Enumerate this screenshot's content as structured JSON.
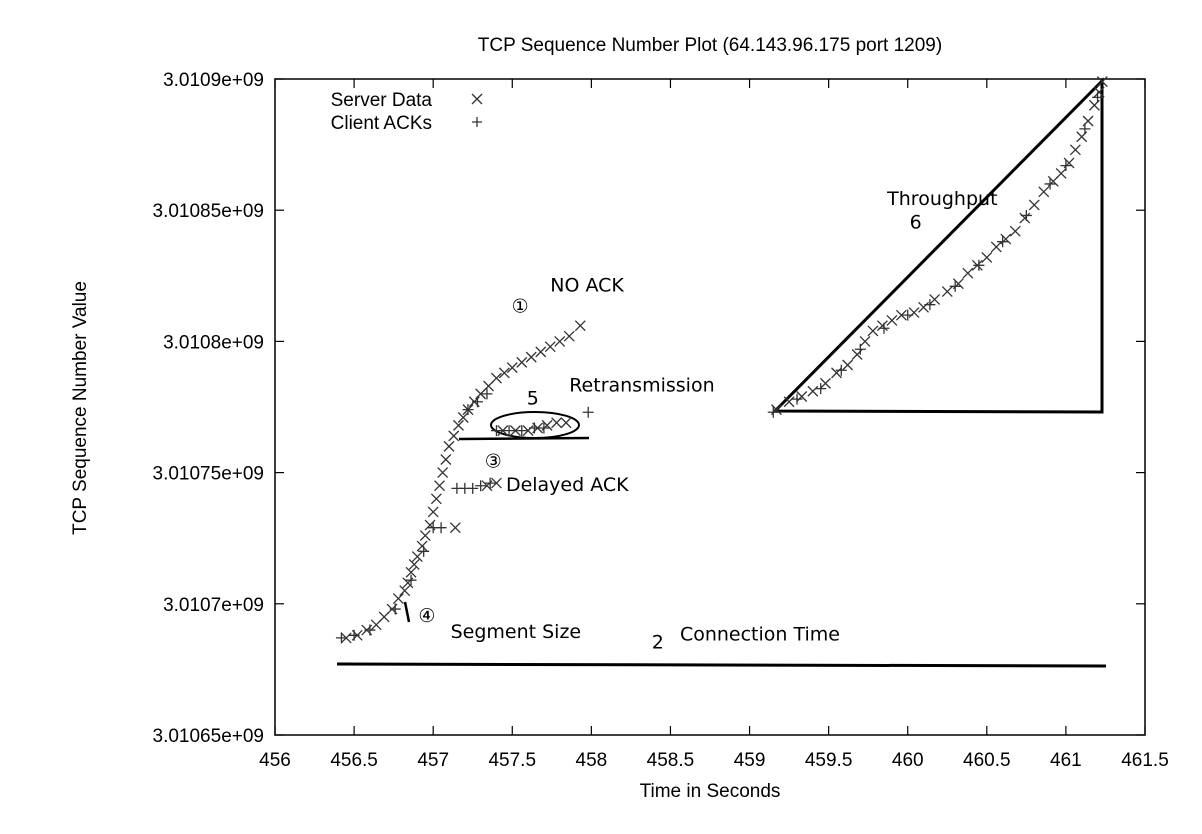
{
  "chart_data": {
    "type": "scatter",
    "title": "TCP Sequence Number Plot (64.143.96.175 port 1209)",
    "xlabel": "Time in Seconds",
    "ylabel": "TCP Sequence Number Value",
    "xlim": [
      456,
      461.5
    ],
    "ylim": [
      3010650000,
      3010900000
    ],
    "x_ticks": [
      {
        "value": 456,
        "label": "456"
      },
      {
        "value": 456.5,
        "label": "456.5"
      },
      {
        "value": 457,
        "label": "457"
      },
      {
        "value": 457.5,
        "label": "457.5"
      },
      {
        "value": 458,
        "label": "458"
      },
      {
        "value": 458.5,
        "label": "458.5"
      },
      {
        "value": 459,
        "label": "459"
      },
      {
        "value": 459.5,
        "label": "459.5"
      },
      {
        "value": 460,
        "label": "460"
      },
      {
        "value": 460.5,
        "label": "460.5"
      },
      {
        "value": 461,
        "label": "461"
      },
      {
        "value": 461.5,
        "label": "461.5"
      }
    ],
    "y_ticks": [
      {
        "value": 3010650000,
        "label": "3.01065e+09"
      },
      {
        "value": 3010700000,
        "label": "3.0107e+09"
      },
      {
        "value": 3010750000,
        "label": "3.01075e+09"
      },
      {
        "value": 3010800000,
        "label": "3.0108e+09"
      },
      {
        "value": 3010850000,
        "label": "3.01085e+09"
      },
      {
        "value": 3010900000,
        "label": "3.0109e+09"
      }
    ],
    "grid": false,
    "legend_position": "top-left",
    "series": [
      {
        "name": "Server Data",
        "marker": "x",
        "color": "#333333",
        "points": [
          [
            456.45,
            3010687000
          ],
          [
            456.52,
            3010688000
          ],
          [
            456.58,
            3010690000
          ],
          [
            456.64,
            3010692000
          ],
          [
            456.69,
            3010695000
          ],
          [
            456.74,
            3010698000
          ],
          [
            456.78,
            3010702000
          ],
          [
            456.82,
            3010705000
          ],
          [
            456.84,
            3010708000
          ],
          [
            456.86,
            3010712000
          ],
          [
            456.88,
            3010715000
          ],
          [
            456.9,
            3010718000
          ],
          [
            456.93,
            3010722000
          ],
          [
            456.95,
            3010726000
          ],
          [
            456.98,
            3010730000
          ],
          [
            457.0,
            3010735000
          ],
          [
            457.02,
            3010740000
          ],
          [
            457.04,
            3010745000
          ],
          [
            457.06,
            3010750000
          ],
          [
            457.08,
            3010755000
          ],
          [
            457.1,
            3010760000
          ],
          [
            457.13,
            3010764000
          ],
          [
            457.16,
            3010768000
          ],
          [
            457.19,
            3010771000
          ],
          [
            457.22,
            3010774000
          ],
          [
            457.26,
            3010777000
          ],
          [
            457.3,
            3010780000
          ],
          [
            457.35,
            3010783000
          ],
          [
            457.4,
            3010786000
          ],
          [
            457.45,
            3010788000
          ],
          [
            457.5,
            3010790000
          ],
          [
            457.56,
            3010792000
          ],
          [
            457.62,
            3010794000
          ],
          [
            457.68,
            3010796000
          ],
          [
            457.74,
            3010798000
          ],
          [
            457.8,
            3010800000
          ],
          [
            457.86,
            3010802000
          ],
          [
            457.93,
            3010806000
          ],
          [
            457.44,
            3010766000
          ],
          [
            457.52,
            3010766000
          ],
          [
            457.6,
            3010766000
          ],
          [
            457.66,
            3010767000
          ],
          [
            457.72,
            3010768000
          ],
          [
            457.78,
            3010769000
          ],
          [
            457.84,
            3010769000
          ],
          [
            457.34,
            3010745000
          ],
          [
            457.4,
            3010746000
          ],
          [
            457.14,
            3010729000
          ],
          [
            459.17,
            3010774000
          ],
          [
            459.25,
            3010777000
          ],
          [
            459.33,
            3010779000
          ],
          [
            459.4,
            3010781000
          ],
          [
            459.48,
            3010784000
          ],
          [
            459.55,
            3010788000
          ],
          [
            459.62,
            3010791000
          ],
          [
            459.68,
            3010795000
          ],
          [
            459.73,
            3010800000
          ],
          [
            459.78,
            3010804000
          ],
          [
            459.84,
            3010806000
          ],
          [
            459.9,
            3010808000
          ],
          [
            459.96,
            3010810000
          ],
          [
            460.04,
            3010811000
          ],
          [
            460.1,
            3010813000
          ],
          [
            460.17,
            3010816000
          ],
          [
            460.25,
            3010819000
          ],
          [
            460.32,
            3010822000
          ],
          [
            460.38,
            3010826000
          ],
          [
            460.44,
            3010829000
          ],
          [
            460.5,
            3010832000
          ],
          [
            460.56,
            3010836000
          ],
          [
            460.62,
            3010839000
          ],
          [
            460.68,
            3010842000
          ],
          [
            460.74,
            3010847000
          ],
          [
            460.8,
            3010852000
          ],
          [
            460.86,
            3010857000
          ],
          [
            460.92,
            3010861000
          ],
          [
            460.97,
            3010864000
          ],
          [
            461.02,
            3010868000
          ],
          [
            461.06,
            3010873000
          ],
          [
            461.1,
            3010878000
          ],
          [
            461.14,
            3010884000
          ],
          [
            461.18,
            3010890000
          ],
          [
            461.21,
            3010895000
          ],
          [
            461.23,
            3010899000
          ]
        ]
      },
      {
        "name": "Client ACKs",
        "marker": "+",
        "color": "#333333",
        "points": [
          [
            456.42,
            3010687000
          ],
          [
            456.5,
            3010688000
          ],
          [
            456.6,
            3010690000
          ],
          [
            456.76,
            3010698000
          ],
          [
            456.86,
            3010709000
          ],
          [
            456.94,
            3010720000
          ],
          [
            457.0,
            3010729000
          ],
          [
            457.05,
            3010729000
          ],
          [
            457.15,
            3010744000
          ],
          [
            457.2,
            3010744000
          ],
          [
            457.25,
            3010744000
          ],
          [
            457.3,
            3010745000
          ],
          [
            457.36,
            3010746000
          ],
          [
            457.22,
            3010774000
          ],
          [
            457.28,
            3010777000
          ],
          [
            457.34,
            3010780000
          ],
          [
            457.4,
            3010766000
          ],
          [
            457.48,
            3010766000
          ],
          [
            457.56,
            3010766000
          ],
          [
            457.64,
            3010767000
          ],
          [
            457.7,
            3010767000
          ],
          [
            457.98,
            3010773000
          ],
          [
            459.15,
            3010773000
          ],
          [
            459.3,
            3010778000
          ],
          [
            459.45,
            3010782000
          ],
          [
            459.58,
            3010789000
          ],
          [
            459.7,
            3010797000
          ],
          [
            459.85,
            3010805000
          ],
          [
            460.0,
            3010810000
          ],
          [
            460.14,
            3010814000
          ],
          [
            460.3,
            3010821000
          ],
          [
            460.45,
            3010829000
          ],
          [
            460.6,
            3010838000
          ],
          [
            460.75,
            3010848000
          ],
          [
            460.9,
            3010860000
          ],
          [
            461.0,
            3010867000
          ],
          [
            461.12,
            3010881000
          ],
          [
            461.2,
            3010893000
          ]
        ]
      }
    ],
    "annotations": [
      {
        "id": "no-ack",
        "text": "NO ACK",
        "x": 457.74,
        "y": 3010819000
      },
      {
        "id": "circled-1",
        "text": "①",
        "x": 457.55,
        "y": 3010811000
      },
      {
        "id": "retransmission",
        "text": "Retransmission",
        "x": 457.86,
        "y": 3010781000
      },
      {
        "id": "label-5",
        "text": "5",
        "x": 457.63,
        "y": 3010776000
      },
      {
        "id": "circled-3",
        "text": "③",
        "x": 457.38,
        "y": 3010752000
      },
      {
        "id": "delayed-ack",
        "text": "Delayed ACK",
        "x": 457.46,
        "y": 3010743000
      },
      {
        "id": "circled-4",
        "text": "④",
        "x": 456.96,
        "y": 3010693000
      },
      {
        "id": "segment-size",
        "text": "Segment Size",
        "x": 457.11,
        "y": 3010687000
      },
      {
        "id": "label-2",
        "text": "2",
        "x": 458.42,
        "y": 3010683000
      },
      {
        "id": "connection-time",
        "text": "Connection Time",
        "x": 458.56,
        "y": 3010686000
      },
      {
        "id": "throughput",
        "text": "Throughput",
        "x": 459.87,
        "y": 3010852000
      },
      {
        "id": "label-6",
        "text": "6",
        "x": 460.05,
        "y": 3010843000
      }
    ]
  }
}
